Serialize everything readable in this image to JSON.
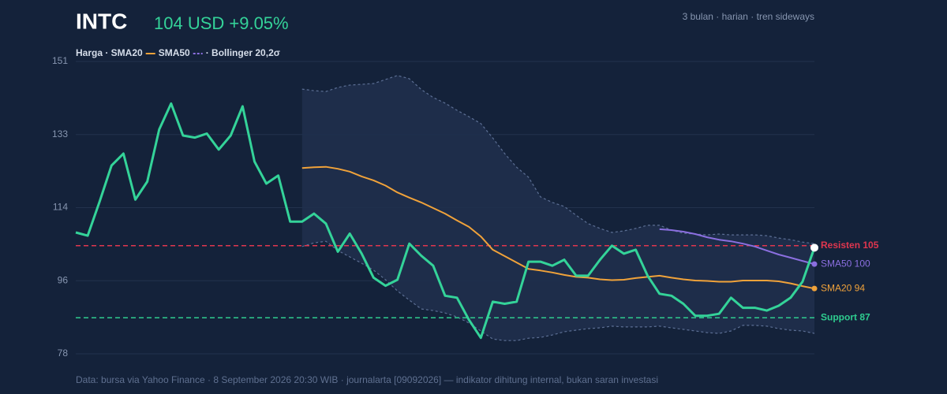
{
  "chart_data": {
    "type": "line",
    "title": "INTC",
    "price_label": "104 USD +9.05%",
    "subtitle": "3 bulan · harian · tren sideways",
    "legend": [
      "Harga · SMA20",
      "SMA50",
      "· Bollinger 20,2σ"
    ],
    "footer": "Data: bursa via Yahoo Finance · 8 September 2026 20:30 WIB · journalarta [09092026] — indikator dihitung internal, bukan saran investasi",
    "ylim": [
      78,
      151
    ],
    "yticks": [
      78,
      {
        "value": 96.25,
        "label": "96"
      },
      {
        "value": 114.5,
        "label": "114"
      },
      {
        "value": 132.75,
        "label": "133"
      },
      151
    ],
    "grid": true,
    "series": [
      {
        "color": "#34d399",
        "values": [
          108.3,
          107.5,
          116,
          125,
          128,
          116.5,
          121,
          134,
          140.5,
          132.5,
          132,
          133,
          129,
          132.5,
          139.8,
          126,
          120.5,
          122.5,
          111,
          111,
          113,
          110.5,
          103.5,
          108,
          103,
          97,
          95,
          96.5,
          105.5,
          102.5,
          100,
          92.5,
          92,
          86.5,
          82,
          91,
          90.5,
          91,
          101,
          101,
          100,
          101.5,
          97.5,
          97.5,
          101.5,
          105,
          103,
          104,
          97.5,
          93,
          92.5,
          90.5,
          87.5,
          87.5,
          88,
          92,
          89.5,
          89.5,
          88.8,
          90,
          92,
          96,
          104.5
        ]
      },
      {
        "color": "#f0a23a",
        "end_label": "SMA20 94",
        "values": [
          null,
          null,
          null,
          null,
          null,
          null,
          null,
          null,
          null,
          null,
          null,
          null,
          null,
          null,
          null,
          null,
          null,
          null,
          null,
          124.4,
          124.6,
          124.7,
          124.2,
          123.5,
          122.3,
          121.3,
          120,
          118.3,
          117,
          115.8,
          114.4,
          113,
          111.3,
          109.7,
          107.3,
          104,
          102.4,
          100.8,
          99.2,
          98.8,
          98.3,
          97.7,
          97.2,
          97,
          96.6,
          96.4,
          96.5,
          96.9,
          97.2,
          97.5,
          97,
          96.6,
          96.3,
          96.2,
          96,
          96,
          96.3,
          96.3,
          96.3,
          96.1,
          95.6,
          94.9,
          94.3
        ]
      },
      {
        "color": "#8b6fe0",
        "end_label": "SMA50 100",
        "values": [
          null,
          null,
          null,
          null,
          null,
          null,
          null,
          null,
          null,
          null,
          null,
          null,
          null,
          null,
          null,
          null,
          null,
          null,
          null,
          null,
          null,
          null,
          null,
          null,
          null,
          null,
          null,
          null,
          null,
          null,
          null,
          null,
          null,
          null,
          null,
          null,
          null,
          null,
          null,
          null,
          null,
          null,
          null,
          null,
          null,
          null,
          null,
          null,
          null,
          109.1,
          108.9,
          108.5,
          107.9,
          107.1,
          106.5,
          106.1,
          105.5,
          104.8,
          103.8,
          102.8,
          102,
          101.2,
          100.4
        ]
      }
    ],
    "bollinger": {
      "color": "#5c6f94",
      "fill": "#1f2f4d",
      "upper": [
        null,
        null,
        null,
        null,
        null,
        null,
        null,
        null,
        null,
        null,
        null,
        null,
        null,
        null,
        null,
        null,
        null,
        null,
        null,
        144.1,
        143.7,
        143.5,
        144.5,
        145.1,
        145.3,
        145.5,
        146.5,
        147.5,
        146.7,
        144,
        142,
        140.6,
        138.8,
        137.2,
        135.5,
        131.9,
        128,
        124.6,
        122.1,
        117.2,
        115.8,
        114.8,
        112.6,
        110.5,
        109.3,
        108.3,
        108.7,
        109.3,
        110.1,
        110.1,
        108.9,
        108.1,
        107.9,
        107.7,
        107.9,
        107.7,
        107.7,
        107.7,
        107.5,
        106.9,
        106.5,
        105.9,
        105.5
      ],
      "lower": [
        null,
        null,
        null,
        null,
        null,
        null,
        null,
        null,
        null,
        null,
        null,
        null,
        null,
        null,
        null,
        null,
        null,
        null,
        null,
        104.8,
        105.7,
        106.1,
        103.8,
        102.2,
        100.6,
        98.9,
        96.5,
        93.7,
        91.4,
        89.2,
        88.8,
        88.2,
        87.2,
        85.7,
        83.7,
        81.7,
        81.3,
        81.3,
        81.9,
        82.1,
        82.7,
        83.5,
        83.9,
        84.3,
        84.5,
        84.9,
        84.7,
        84.7,
        84.7,
        84.9,
        84.5,
        84.1,
        83.7,
        83.3,
        83.1,
        83.7,
        85.1,
        85.1,
        84.9,
        84.3,
        83.9,
        83.7,
        83.1
      ]
    },
    "levels": [
      {
        "label": "Resisten 105",
        "value": 105,
        "color": "#e0364f"
      },
      {
        "label": "Support 87",
        "value": 87,
        "color": "#2ecc8f"
      }
    ]
  }
}
